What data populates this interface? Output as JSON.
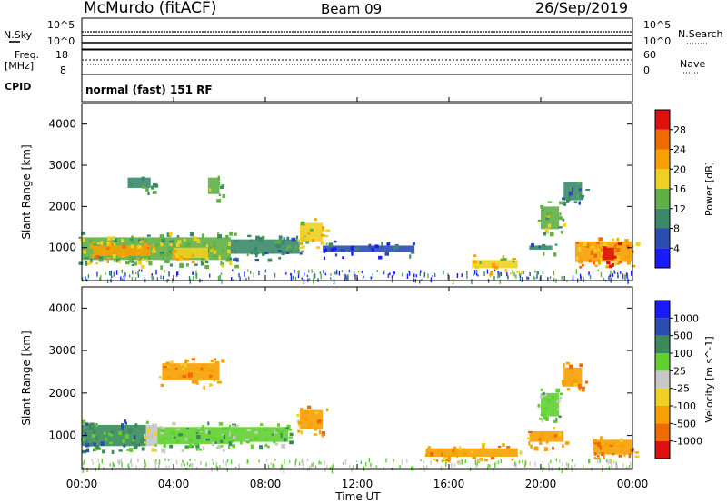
{
  "header": {
    "title": "McMurdo (fitACF)",
    "beam": "Beam 09",
    "date": "26/Sep/2019"
  },
  "status_strip": {
    "left_label": "N.Sky",
    "right_label": "N.Search",
    "left_ticks": [
      "10^5",
      "10^0"
    ],
    "right_ticks": [
      "10^5",
      "10^0"
    ]
  },
  "freq_strip": {
    "left_label": "Freq.",
    "left_unit": "[MHz]",
    "left_ticks": [
      "18",
      "8"
    ],
    "right_label": "Nave",
    "right_ticks": [
      "60",
      "0"
    ]
  },
  "cpid_strip": {
    "label": "CPID",
    "mode": "normal (fast) 151 RF"
  },
  "x_axis": {
    "label": "Time UT",
    "ticks": [
      "00:00",
      "04:00",
      "08:00",
      "12:00",
      "16:00",
      "20:00",
      "00:00"
    ]
  },
  "colors": {
    "power_scale": [
      "#1a1aff",
      "#2a4db0",
      "#3a8a6a",
      "#5fb045",
      "#f0d020",
      "#f7a000",
      "#f06a00",
      "#e01010"
    ],
    "velocity_scale": [
      "#e01010",
      "#f06a00",
      "#f7a000",
      "#f0d020",
      "#c8c8c8",
      "#5fd030",
      "#3a8a5a",
      "#2a4db0",
      "#1a1aff"
    ]
  },
  "chart_data": [
    {
      "type": "heatmap",
      "name": "power",
      "ylabel": "Slant Range [km]",
      "xlabel": "",
      "xlim": [
        0,
        24
      ],
      "ylim": [
        200,
        4500
      ],
      "yticks": [
        1000,
        2000,
        3000,
        4000
      ],
      "colorbar_label": "Power [dB]",
      "colorbar_ticks": [
        "4",
        "8",
        "12",
        "16",
        "20",
        "24",
        "28"
      ],
      "regions": [
        {
          "t0": 0.0,
          "t1": 6.5,
          "r0": 700,
          "r1": 1250,
          "level": 12
        },
        {
          "t0": 0.5,
          "t1": 3.0,
          "r0": 800,
          "r1": 1050,
          "level": 20
        },
        {
          "t0": 4.0,
          "t1": 5.5,
          "r0": 750,
          "r1": 1000,
          "level": 18
        },
        {
          "t0": 2.0,
          "t1": 3.0,
          "r0": 2450,
          "r1": 2700,
          "level": 8
        },
        {
          "t0": 5.5,
          "t1": 6.0,
          "r0": 2300,
          "r1": 2700,
          "level": 12
        },
        {
          "t0": 6.5,
          "t1": 9.5,
          "r0": 850,
          "r1": 1200,
          "level": 8
        },
        {
          "t0": 9.5,
          "t1": 10.5,
          "r0": 1150,
          "r1": 1600,
          "level": 16
        },
        {
          "t0": 10.5,
          "t1": 14.5,
          "r0": 900,
          "r1": 1050,
          "level": 6
        },
        {
          "t0": 17.0,
          "t1": 19.0,
          "r0": 500,
          "r1": 700,
          "level": 18
        },
        {
          "t0": 19.5,
          "t1": 20.5,
          "r0": 950,
          "r1": 1050,
          "level": 8
        },
        {
          "t0": 20.0,
          "t1": 20.8,
          "r0": 1450,
          "r1": 2000,
          "level": 12
        },
        {
          "t0": 21.0,
          "t1": 21.8,
          "r0": 2150,
          "r1": 2600,
          "level": 10
        },
        {
          "t0": 21.5,
          "t1": 24.0,
          "r0": 650,
          "r1": 1150,
          "level": 20
        },
        {
          "t0": 22.7,
          "t1": 23.2,
          "r0": 700,
          "r1": 1000,
          "level": 28
        }
      ]
    },
    {
      "type": "heatmap",
      "name": "velocity",
      "ylabel": "Slant Range [km]",
      "xlabel": "Time UT",
      "xlim": [
        0,
        24
      ],
      "ylim": [
        200,
        4500
      ],
      "yticks": [
        1000,
        2000,
        3000,
        4000
      ],
      "colorbar_label": "Velocity [m s^-1]",
      "colorbar_ticks": [
        "-1000",
        "-500",
        "-100",
        "-25",
        "25",
        "100",
        "500",
        "1000"
      ],
      "regions": [
        {
          "t0": 0.0,
          "t1": 2.8,
          "r0": 750,
          "r1": 1250,
          "level": 150
        },
        {
          "t0": 2.8,
          "t1": 3.3,
          "r0": 750,
          "r1": 1250,
          "level": 0
        },
        {
          "t0": 3.3,
          "t1": 6.5,
          "r0": 800,
          "r1": 1200,
          "level": 80
        },
        {
          "t0": 3.5,
          "t1": 6.0,
          "r0": 2300,
          "r1": 2700,
          "level": -150
        },
        {
          "t0": 6.5,
          "t1": 9.0,
          "r0": 850,
          "r1": 1200,
          "level": 60
        },
        {
          "t0": 9.5,
          "t1": 10.5,
          "r0": 1150,
          "r1": 1600,
          "level": -200
        },
        {
          "t0": 15.0,
          "t1": 19.0,
          "r0": 500,
          "r1": 700,
          "level": -100
        },
        {
          "t0": 19.5,
          "t1": 21.0,
          "r0": 850,
          "r1": 1100,
          "level": -300
        },
        {
          "t0": 20.0,
          "t1": 20.8,
          "r0": 1450,
          "r1": 2000,
          "level": 100
        },
        {
          "t0": 21.0,
          "t1": 21.8,
          "r0": 2150,
          "r1": 2600,
          "level": -200
        },
        {
          "t0": 22.3,
          "t1": 24.0,
          "r0": 550,
          "r1": 900,
          "level": -400
        }
      ]
    }
  ]
}
